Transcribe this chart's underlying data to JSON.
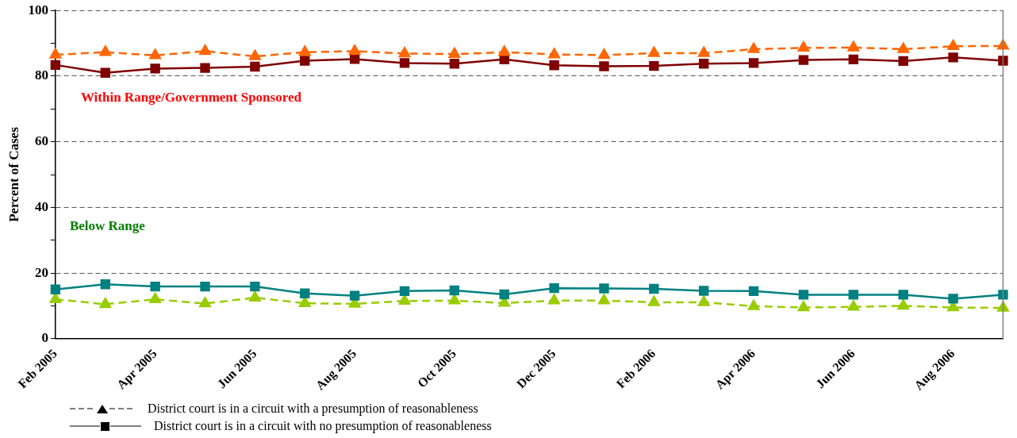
{
  "chart_data": {
    "type": "line",
    "ylabel": "Percent of Cases",
    "categories": [
      "Feb 2005",
      null,
      "Apr 2005",
      null,
      "Jun 2005",
      null,
      "Aug 2005",
      null,
      "Oct 2005",
      null,
      "Dec 2005",
      null,
      "Feb 2006",
      null,
      "Apr 2006",
      null,
      "Jun 2006",
      null,
      "Aug 2006",
      null
    ],
    "series": [
      {
        "color": "#ff6600",
        "marker": "triangle",
        "line_style": "dashed",
        "values": [
          86.5,
          87.3,
          86.3,
          87.6,
          86.0,
          87.3,
          87.6,
          86.9,
          86.7,
          87.3,
          86.6,
          86.4,
          87.0,
          87.0,
          88.2,
          88.6,
          88.7,
          88.2,
          89.1,
          89.2
        ]
      },
      {
        "color": "#800000",
        "marker": "square",
        "line_style": "solid",
        "values": [
          83.4,
          81.0,
          82.3,
          82.5,
          82.9,
          84.7,
          85.2,
          84.0,
          83.8,
          85.1,
          83.3,
          83.0,
          83.1,
          83.8,
          84.0,
          84.9,
          85.1,
          84.6,
          85.7,
          84.7
        ]
      },
      {
        "color": "#008080",
        "marker": "square",
        "line_style": "solid",
        "values": [
          15.0,
          16.6,
          15.9,
          15.9,
          15.9,
          13.8,
          13.1,
          14.5,
          14.7,
          13.5,
          15.4,
          15.3,
          15.2,
          14.6,
          14.5,
          13.4,
          13.4,
          13.4,
          12.2,
          13.4
        ]
      },
      {
        "color": "#99cc00",
        "marker": "triangle",
        "line_style": "dashed",
        "values": [
          12.0,
          10.5,
          12.0,
          10.7,
          12.5,
          10.8,
          10.6,
          11.5,
          11.6,
          10.9,
          11.6,
          11.6,
          11.1,
          11.1,
          9.9,
          9.5,
          9.7,
          10.0,
          9.5,
          9.4
        ]
      }
    ],
    "ylim": [
      0,
      100
    ],
    "yticks": [
      0,
      {
        "value": 10,
        "label": null
      },
      20,
      {
        "value": 30,
        "label": null
      },
      40,
      {
        "value": 50,
        "label": null
      },
      60,
      {
        "value": 70,
        "label": null
      },
      80,
      {
        "value": 90,
        "label": null
      },
      100
    ],
    "grid": "y",
    "annotations": [
      "Within Range/Government Sponsored",
      "Below Range",
      "District court is in a circuit with a presumption of reasonableness",
      "District court is in a circuit with no presumption of reasonableness"
    ]
  }
}
